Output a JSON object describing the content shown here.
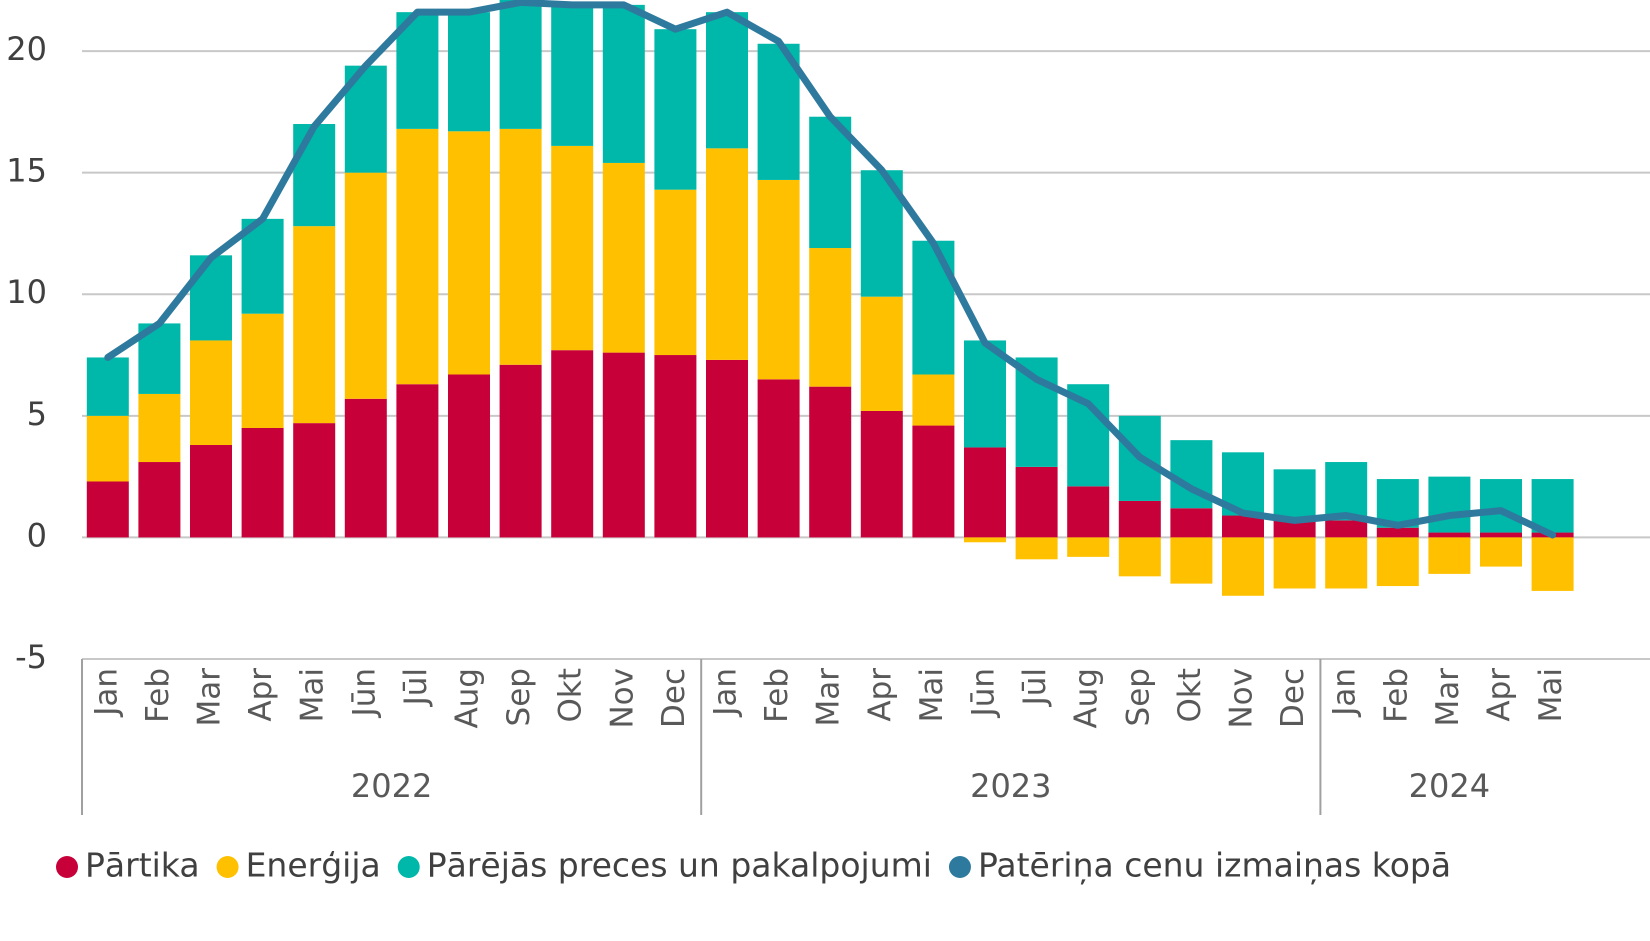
{
  "chart_data": {
    "type": "stacked_bar_line",
    "categories": [
      "Jan",
      "Feb",
      "Mar",
      "Apr",
      "Mai",
      "Jūn",
      "Jūl",
      "Aug",
      "Sep",
      "Okt",
      "Nov",
      "Dec",
      "Jan",
      "Feb",
      "Mar",
      "Apr",
      "Mai",
      "Jūn",
      "Jūl",
      "Aug",
      "Sep",
      "Okt",
      "Nov",
      "Dec",
      "Jan",
      "Feb",
      "Mar",
      "Apr",
      "Mai"
    ],
    "groups": [
      "2022",
      "2023",
      "2024"
    ],
    "series": [
      {
        "name": "Pārtika",
        "color": "#c8003a",
        "kind": "bar",
        "values": [
          2.3,
          3.1,
          3.8,
          4.5,
          4.7,
          5.7,
          6.3,
          6.7,
          7.1,
          7.7,
          7.6,
          7.5,
          7.3,
          6.5,
          6.2,
          5.2,
          4.6,
          3.7,
          2.9,
          2.1,
          1.5,
          1.2,
          0.9,
          0.7,
          0.7,
          0.4,
          0.2,
          0.2,
          0.2
        ]
      },
      {
        "name": "Enerģija",
        "color": "#ffc000",
        "kind": "bar",
        "values": [
          2.7,
          2.8,
          4.3,
          4.7,
          8.1,
          9.3,
          10.5,
          10.0,
          9.7,
          8.4,
          7.8,
          6.8,
          8.7,
          8.2,
          5.7,
          4.7,
          2.1,
          -0.2,
          -0.9,
          -0.8,
          -1.6,
          -1.9,
          -2.4,
          -2.1,
          -2.1,
          -2.0,
          -1.5,
          -1.2,
          -2.2
        ]
      },
      {
        "name": "Pārējās preces un pakalpojumi",
        "color": "#00b8a9",
        "kind": "bar",
        "values": [
          2.4,
          2.9,
          3.5,
          3.9,
          4.2,
          4.4,
          4.8,
          4.9,
          5.3,
          5.8,
          6.5,
          6.6,
          5.6,
          5.6,
          5.4,
          5.2,
          5.5,
          4.4,
          4.5,
          4.2,
          3.5,
          2.8,
          2.6,
          2.1,
          2.4,
          2.0,
          2.3,
          2.2,
          2.2
        ]
      },
      {
        "name": "Patēriņa cenu izmaiņas kopā",
        "color": "#2e7a9e",
        "kind": "line",
        "values": [
          7.4,
          8.8,
          11.5,
          13.1,
          16.9,
          19.4,
          21.6,
          21.6,
          22.0,
          21.9,
          21.9,
          20.9,
          21.6,
          20.4,
          17.3,
          15.1,
          12.1,
          8.0,
          6.5,
          5.5,
          3.3,
          2.0,
          1.0,
          0.7,
          0.9,
          0.5,
          0.9,
          1.1,
          0.1
        ]
      }
    ],
    "ylim": [
      -5,
      22.1
    ],
    "yticks": [
      -5,
      0,
      5,
      10,
      15,
      20
    ],
    "grid": true,
    "legend": "bottom"
  }
}
